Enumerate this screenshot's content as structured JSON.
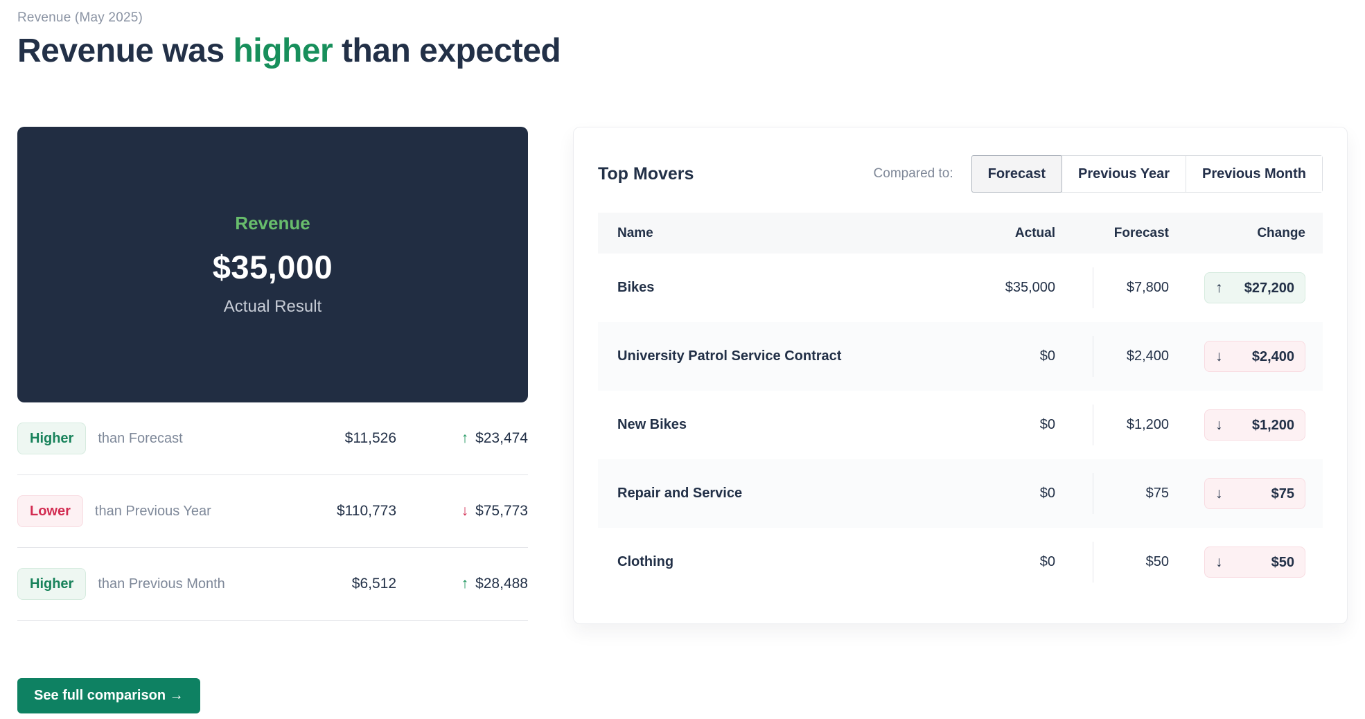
{
  "page": {
    "eyebrow": "Revenue (May 2025)",
    "title_pre": "Revenue was ",
    "title_highlight": "higher",
    "title_post": " than expected"
  },
  "summary_card": {
    "label": "Revenue",
    "value": "$35,000",
    "caption": "Actual Result"
  },
  "comparisons": [
    {
      "badge": "Higher",
      "direction": "up",
      "label": "than Forecast",
      "base": "$11,526",
      "arrow": "↑",
      "delta": "$23,474"
    },
    {
      "badge": "Lower",
      "direction": "down",
      "label": "than Previous Year",
      "base": "$110,773",
      "arrow": "↓",
      "delta": "$75,773"
    },
    {
      "badge": "Higher",
      "direction": "up",
      "label": "than Previous Month",
      "base": "$6,512",
      "arrow": "↑",
      "delta": "$28,488"
    }
  ],
  "cta": {
    "label": "See full comparison →"
  },
  "top_movers": {
    "title": "Top Movers",
    "compared_to_label": "Compared to:",
    "options": [
      {
        "label": "Forecast",
        "selected": true
      },
      {
        "label": "Previous Year",
        "selected": false
      },
      {
        "label": "Previous Month",
        "selected": false
      }
    ],
    "columns": [
      "Name",
      "Actual",
      "Forecast",
      "Change"
    ],
    "rows": [
      {
        "name": "Bikes",
        "actual": "$35,000",
        "forecast": "$7,800",
        "direction": "up",
        "arrow": "↑",
        "change": "$27,200"
      },
      {
        "name": "University Patrol Service Contract",
        "actual": "$0",
        "forecast": "$2,400",
        "direction": "down",
        "arrow": "↓",
        "change": "$2,400"
      },
      {
        "name": "New Bikes",
        "actual": "$0",
        "forecast": "$1,200",
        "direction": "down",
        "arrow": "↓",
        "change": "$1,200"
      },
      {
        "name": "Repair and Service",
        "actual": "$0",
        "forecast": "$75",
        "direction": "down",
        "arrow": "↓",
        "change": "$75"
      },
      {
        "name": "Clothing",
        "actual": "$0",
        "forecast": "$50",
        "direction": "down",
        "arrow": "↓",
        "change": "$50"
      }
    ]
  },
  "accent_colors": {
    "green_text": "#178f5b",
    "green_badge_bg": "#eef7f2",
    "red_text": "#d22c51",
    "red_badge_bg": "#fdf1f3",
    "navy_text": "#223047",
    "dark_card_bg": "#212d42",
    "button_green": "#0e8162",
    "card_label_green": "#68bd6c"
  }
}
